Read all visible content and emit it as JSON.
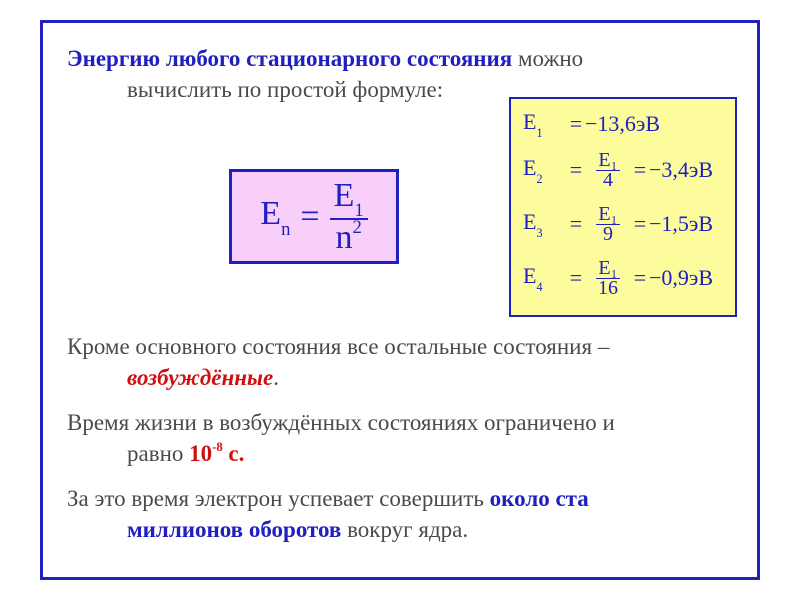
{
  "colors": {
    "frame_border": "#2020c0",
    "text_body": "#4a4a4a",
    "accent_blue": "#2020c0",
    "accent_red": "#d01010",
    "formula_bg": "#f8cff8",
    "values_bg": "#fcfc9c",
    "page_bg": "#ffffff"
  },
  "typography": {
    "family": "Times New Roman, serif",
    "body_size_pt": 17,
    "formula_size_pt": 26,
    "values_size_pt": 16
  },
  "intro": {
    "highlight": "Энергию любого стационарного состояния",
    "rest_line1": " можно",
    "rest_line2": "вычислить по простой формуле:"
  },
  "formula": {
    "lhs_base": "E",
    "lhs_sub": "n",
    "eq": "=",
    "num_base": "E",
    "num_sub": "1",
    "den_base": "n",
    "den_sup": "2"
  },
  "values": {
    "rows": [
      {
        "label_base": "E",
        "label_sub": "1",
        "eq": "=",
        "frac_num": "",
        "frac_den": "",
        "result": "−13,6эВ"
      },
      {
        "label_base": "E",
        "label_sub": "2",
        "eq": "=",
        "frac_num": "E₁",
        "frac_den": "4",
        "eq2": "=",
        "result": "−3,4эВ"
      },
      {
        "label_base": "E",
        "label_sub": "3",
        "eq": "=",
        "frac_num": "E₁",
        "frac_den": "9",
        "eq2": "=",
        "result": "−1,5эВ"
      },
      {
        "label_base": "E",
        "label_sub": "4",
        "eq": "=",
        "frac_num": "E₁",
        "frac_den": "16",
        "eq2": "=",
        "result": "−0,9эВ"
      }
    ]
  },
  "para2": {
    "pre": "Кроме основного состояния все остальные состояния –",
    "word": "возбуждённые",
    "post": "."
  },
  "para3": {
    "pre": "Время жизни в возбуждённых состояниях ограничено и",
    "line2_pre": "равно ",
    "value_main": "10",
    "value_exp": "-8",
    "value_unit": " с."
  },
  "para4": {
    "pre": "За это время  электрон успевает совершить ",
    "bold1": "около ста",
    "line2_bold": "миллионов оборотов",
    "line2_rest": " вокруг ядра."
  }
}
